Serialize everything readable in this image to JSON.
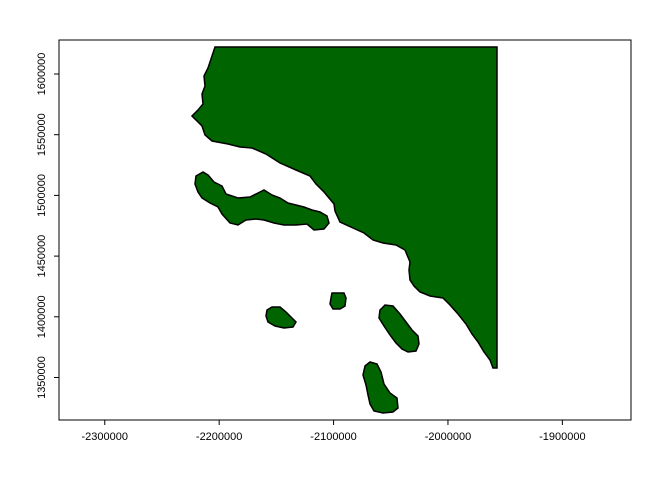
{
  "colors": {
    "land_fill": "#006400",
    "land_stroke": "#000000",
    "frame": "#000000",
    "background": "#ffffff"
  },
  "x_axis": {
    "range": [
      -2340000,
      -1840000
    ],
    "ticks": [
      {
        "value": -2300000,
        "label": "-2300000"
      },
      {
        "value": -2200000,
        "label": "-2200000"
      },
      {
        "value": -2100000,
        "label": "-2100000"
      },
      {
        "value": -2000000,
        "label": "-2000000"
      },
      {
        "value": -1900000,
        "label": "-1900000"
      }
    ]
  },
  "y_axis": {
    "range": [
      1315000,
      1628000
    ],
    "ticks": [
      {
        "value": 1350000,
        "label": "1350000"
      },
      {
        "value": 1400000,
        "label": "1400000"
      },
      {
        "value": 1450000,
        "label": "1450000"
      },
      {
        "value": 1500000,
        "label": "1500000"
      },
      {
        "value": 1550000,
        "label": "1550000"
      },
      {
        "value": 1600000,
        "label": "1600000"
      }
    ]
  }
}
